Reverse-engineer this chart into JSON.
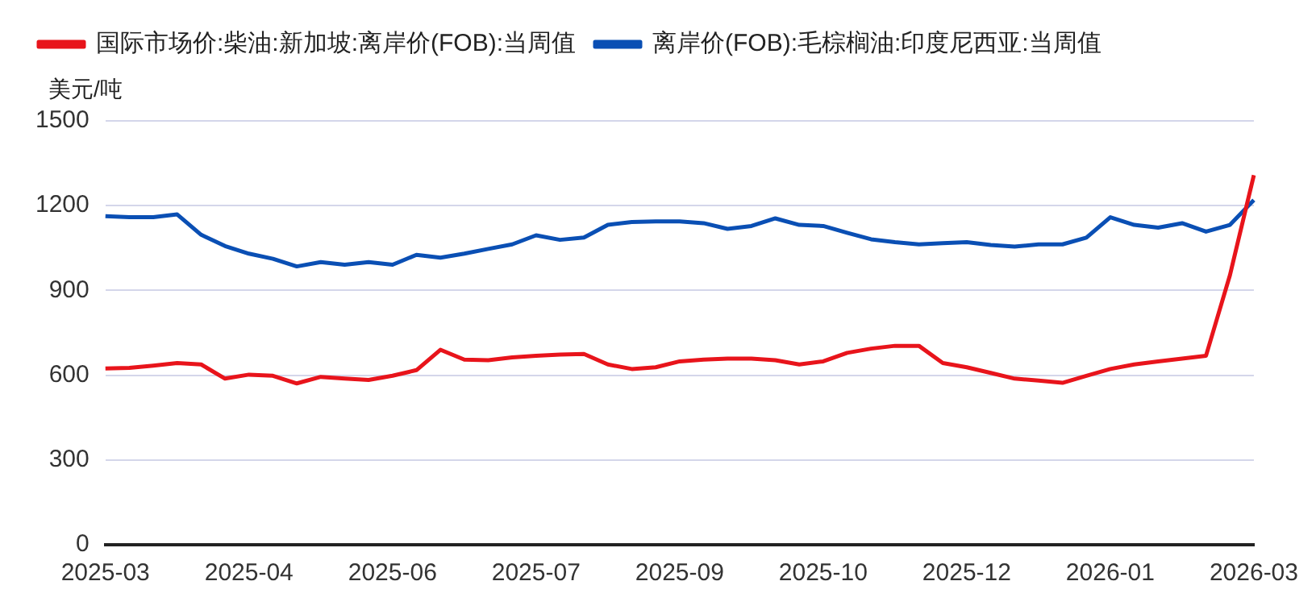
{
  "chart_data": {
    "type": "line",
    "ylabel": "美元/吨",
    "categories": [
      "2025-03",
      null,
      null,
      null,
      null,
      null,
      "2025-04",
      null,
      null,
      null,
      null,
      null,
      "2025-06",
      null,
      null,
      null,
      null,
      null,
      "2025-07",
      null,
      null,
      null,
      null,
      null,
      "2025-09",
      null,
      null,
      null,
      null,
      null,
      "2025-10",
      null,
      null,
      null,
      null,
      null,
      "2025-12",
      null,
      null,
      null,
      null,
      null,
      "2026-01",
      null,
      null,
      null,
      null,
      null,
      "2026-03"
    ],
    "series": [
      {
        "name": "国际市场价:柴油:新加坡:离岸价(FOB):当周值",
        "color": "#e8141b",
        "values": [
          624,
          626,
          634,
          643,
          638,
          588,
          602,
          598,
          571,
          594,
          588,
          583,
          598,
          618,
          690,
          655,
          653,
          663,
          669,
          673,
          675,
          638,
          622,
          628,
          649,
          655,
          659,
          659,
          653,
          638,
          649,
          679,
          694,
          704,
          704,
          643,
          628,
          608,
          588,
          581,
          573,
          598,
          622,
          638,
          649,
          659,
          669,
          954,
          1308
        ]
      },
      {
        "name": "离岸价(FOB):毛棕榈油:印度尼西亚:当周值",
        "color": "#0a4fb4",
        "values": [
          1163,
          1159,
          1159,
          1169,
          1097,
          1057,
          1030,
          1012,
          985,
          1000,
          991,
          1000,
          991,
          1026,
          1016,
          1030,
          1047,
          1063,
          1095,
          1079,
          1087,
          1132,
          1142,
          1144,
          1144,
          1138,
          1118,
          1128,
          1155,
          1132,
          1128,
          1104,
          1081,
          1071,
          1063,
          1067,
          1071,
          1061,
          1055,
          1063,
          1063,
          1087,
          1159,
          1132,
          1122,
          1138,
          1108,
          1132,
          1220
        ]
      }
    ],
    "ylim": [
      0,
      1500
    ],
    "yticks": [
      0,
      300,
      600,
      900,
      1200,
      1500
    ],
    "grid": "y",
    "legend": "top left",
    "marker": "none",
    "line_style": "solid"
  }
}
